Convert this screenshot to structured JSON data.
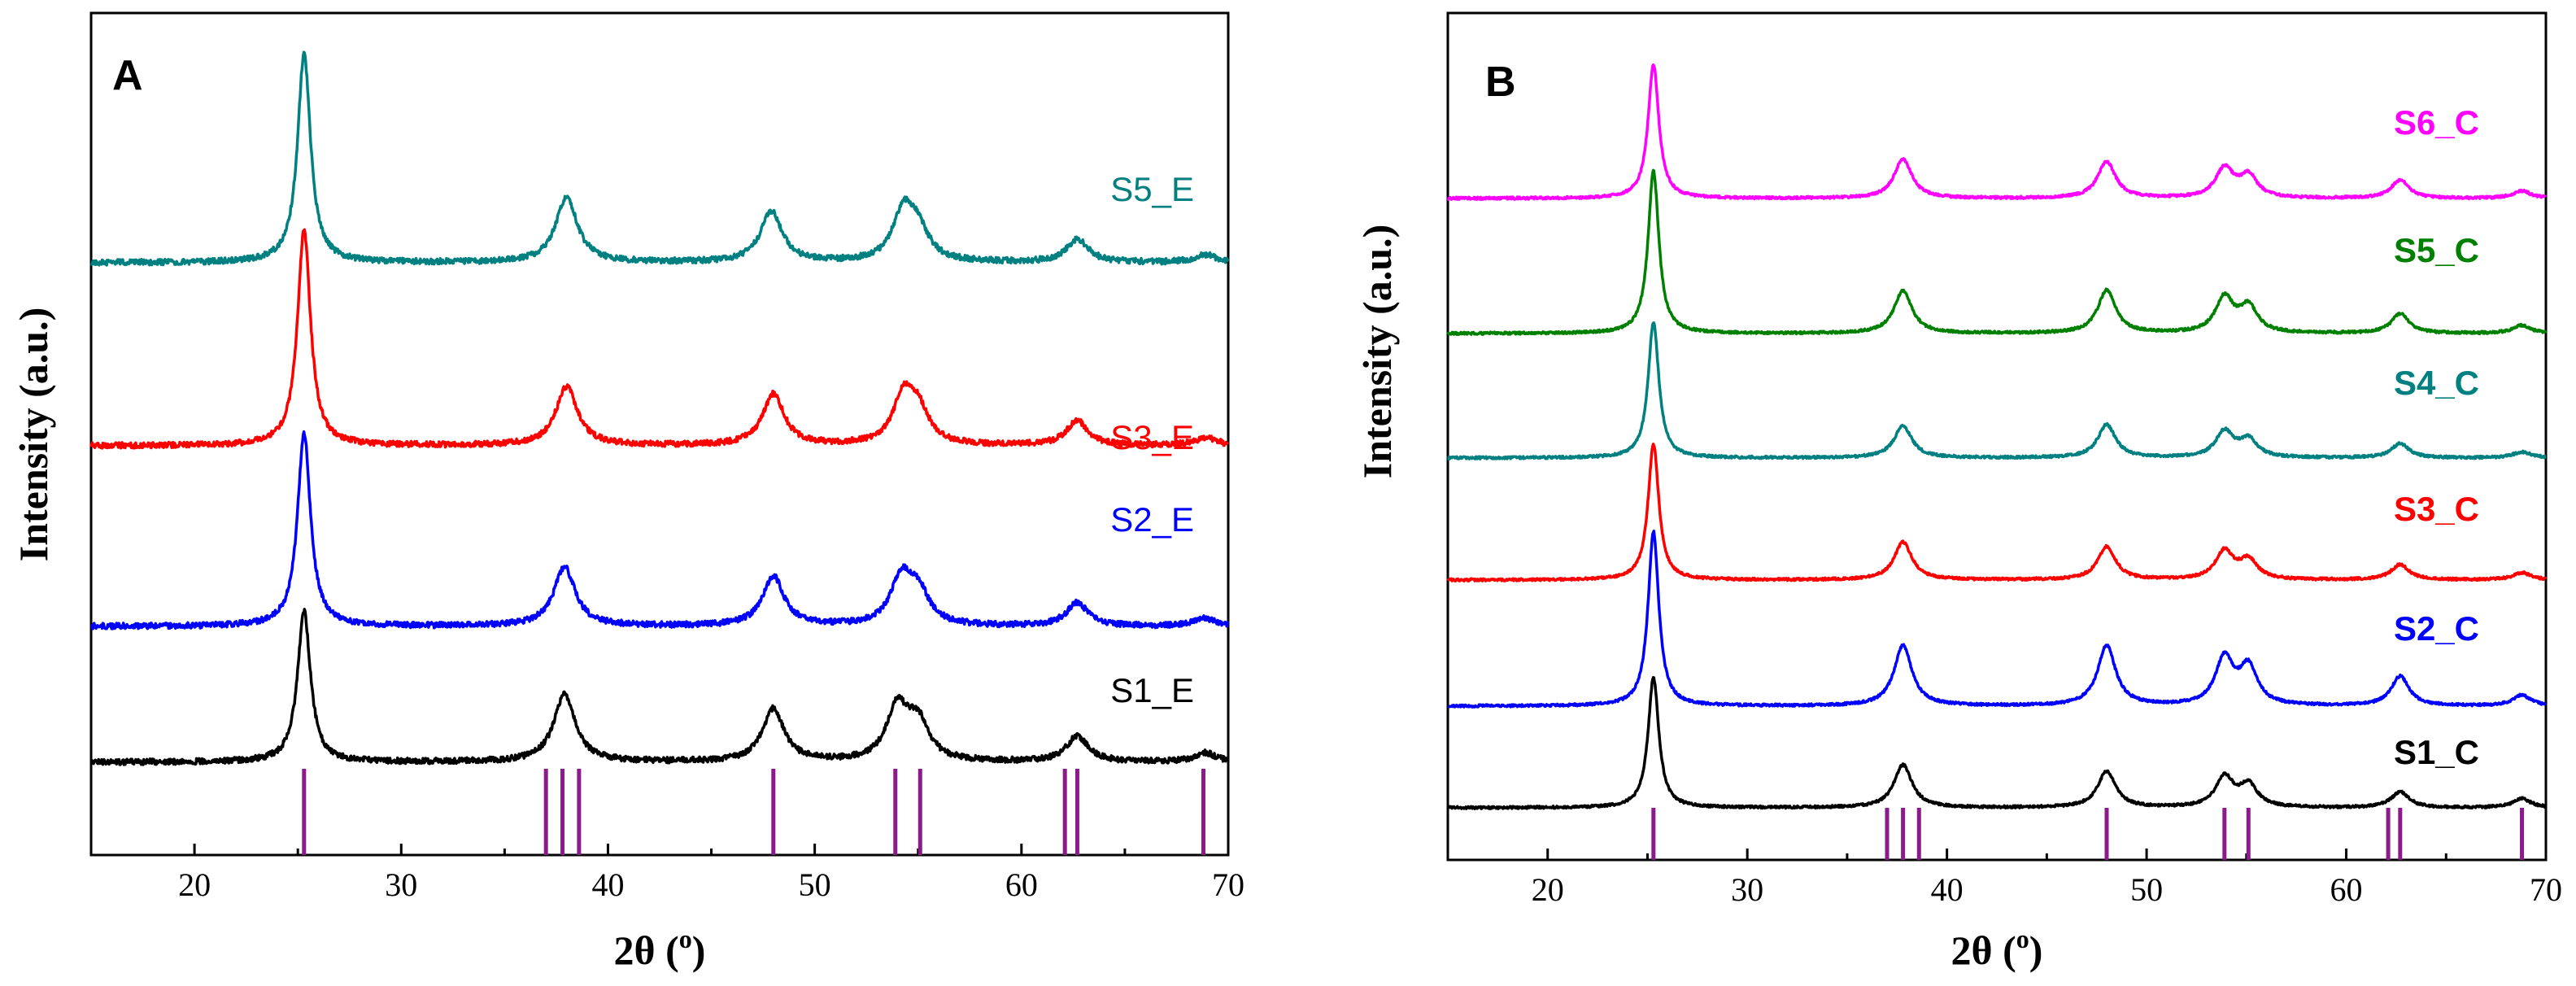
{
  "chart_data": [
    {
      "type": "line",
      "panel": "A",
      "xlabel": "2θ (",
      "xlabel_sup": "o",
      "xlabel_end": ")",
      "ylabel": "Intensity (a.u.)",
      "xlim": [
        15,
        70
      ],
      "xticks": [
        20,
        30,
        40,
        50,
        60,
        70
      ],
      "reference_peaks": [
        25.3,
        37.0,
        37.8,
        38.6,
        48.0,
        53.9,
        55.1,
        62.1,
        62.7,
        68.8
      ],
      "series": [
        {
          "name": "S1_E",
          "color": "#000000",
          "baseline": 0.0,
          "peaks": [
            [
              25.3,
              1.0
            ],
            [
              37.9,
              0.45
            ],
            [
              48.0,
              0.35
            ],
            [
              54.0,
              0.35
            ],
            [
              55.0,
              0.25
            ],
            [
              62.7,
              0.17
            ],
            [
              68.9,
              0.06
            ]
          ]
        },
        {
          "name": "S2_E",
          "color": "#0000ff",
          "baseline": 1.0,
          "peaks": [
            [
              25.3,
              1.25
            ],
            [
              37.9,
              0.38
            ],
            [
              48.0,
              0.32
            ],
            [
              54.2,
              0.3
            ],
            [
              55.0,
              0.2
            ],
            [
              62.7,
              0.15
            ],
            [
              68.9,
              0.05
            ]
          ]
        },
        {
          "name": "S3_E",
          "color": "#ff0000",
          "baseline": 2.0,
          "peaks": [
            [
              25.3,
              1.4
            ],
            [
              38.0,
              0.38
            ],
            [
              48.0,
              0.33
            ],
            [
              54.3,
              0.3
            ],
            [
              55.0,
              0.2
            ],
            [
              62.7,
              0.16
            ],
            [
              68.9,
              0.05
            ]
          ]
        },
        {
          "name": "S5_E",
          "color": "#008080",
          "baseline": 3.0,
          "peaks": [
            [
              25.3,
              1.35
            ],
            [
              38.0,
              0.42
            ],
            [
              47.9,
              0.33
            ],
            [
              54.3,
              0.32
            ],
            [
              55.0,
              0.18
            ],
            [
              62.7,
              0.15
            ],
            [
              68.9,
              0.05
            ]
          ]
        }
      ]
    },
    {
      "type": "line",
      "panel": "B",
      "xlabel": "2θ (",
      "xlabel_sup": "o",
      "xlabel_end": ")",
      "ylabel": "Intensity (a.u.)",
      "xlim": [
        15,
        70
      ],
      "xticks": [
        20,
        30,
        40,
        50,
        60,
        70
      ],
      "reference_peaks": [
        25.3,
        37.0,
        37.8,
        38.6,
        48.0,
        53.9,
        55.1,
        62.1,
        62.7,
        68.8
      ],
      "series": [
        {
          "name": "S1_C",
          "color": "#000000",
          "baseline": 0.0,
          "peaks": [
            [
              25.3,
              1.0
            ],
            [
              37.8,
              0.33
            ],
            [
              48.0,
              0.28
            ],
            [
              53.9,
              0.23
            ],
            [
              55.1,
              0.17
            ],
            [
              62.7,
              0.12
            ],
            [
              68.8,
              0.07
            ]
          ]
        },
        {
          "name": "S2_C",
          "color": "#0000ff",
          "baseline": 1.0,
          "peaks": [
            [
              25.3,
              1.3
            ],
            [
              37.8,
              0.45
            ],
            [
              48.0,
              0.45
            ],
            [
              53.9,
              0.35
            ],
            [
              55.1,
              0.28
            ],
            [
              62.7,
              0.22
            ],
            [
              68.8,
              0.08
            ]
          ]
        },
        {
          "name": "S3_C",
          "color": "#ff0000",
          "baseline": 2.0,
          "peaks": [
            [
              25.3,
              1.15
            ],
            [
              37.8,
              0.32
            ],
            [
              48.0,
              0.28
            ],
            [
              53.9,
              0.24
            ],
            [
              55.1,
              0.16
            ],
            [
              62.7,
              0.13
            ],
            [
              68.8,
              0.06
            ]
          ]
        },
        {
          "name": "S4_C",
          "color": "#008080",
          "baseline": 3.0,
          "peaks": [
            [
              25.3,
              1.15
            ],
            [
              37.8,
              0.27
            ],
            [
              48.0,
              0.28
            ],
            [
              53.9,
              0.22
            ],
            [
              55.1,
              0.15
            ],
            [
              62.7,
              0.12
            ],
            [
              68.8,
              0.05
            ]
          ]
        },
        {
          "name": "S5_C",
          "color": "#008000",
          "baseline": 4.0,
          "peaks": [
            [
              25.3,
              1.25
            ],
            [
              37.8,
              0.33
            ],
            [
              48.0,
              0.33
            ],
            [
              53.9,
              0.27
            ],
            [
              55.1,
              0.2
            ],
            [
              62.7,
              0.15
            ],
            [
              68.8,
              0.06
            ]
          ]
        },
        {
          "name": "S6_C",
          "color": "#ff00ff",
          "baseline": 5.0,
          "peaks": [
            [
              25.3,
              1.1
            ],
            [
              37.8,
              0.32
            ],
            [
              48.0,
              0.3
            ],
            [
              53.9,
              0.24
            ],
            [
              55.1,
              0.18
            ],
            [
              62.7,
              0.15
            ],
            [
              68.8,
              0.06
            ]
          ]
        }
      ]
    }
  ]
}
